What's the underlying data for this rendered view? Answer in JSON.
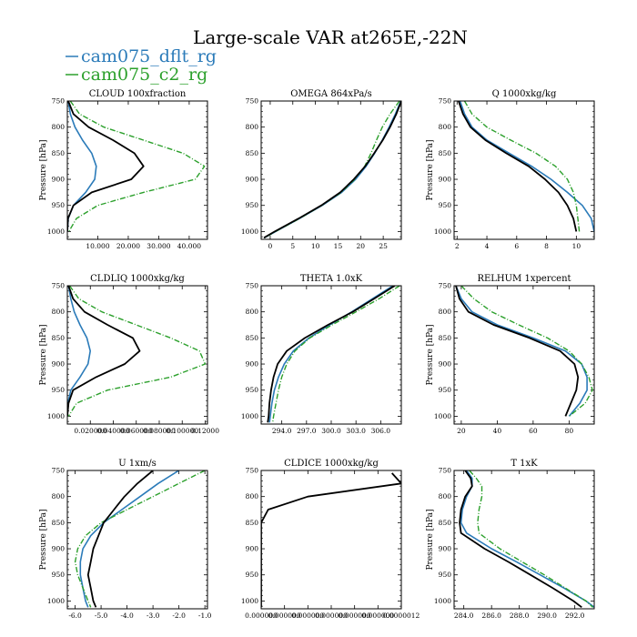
{
  "figure": {
    "title": "Large-scale VAR at265E,-22N",
    "legend": [
      {
        "label": "cam075_dflt_rg",
        "color": "#2b7bb9",
        "dash": "solid"
      },
      {
        "label": "cam075_c2_rg",
        "color": "#2ca02c",
        "dash": "dashdot"
      }
    ],
    "black_series_color": "#000000"
  },
  "chart_data": [
    {
      "type": "line",
      "title": "CLOUD  100xfraction",
      "ylabel": "Pressure [hPa]",
      "xlim": [
        0,
        46
      ],
      "ylim": [
        750,
        1015
      ],
      "xticks": [
        10,
        20,
        30,
        40
      ],
      "xticklabels": [
        "10.000",
        "20.000",
        "30.000",
        "40.000"
      ],
      "yticks": [
        750,
        800,
        850,
        900,
        950,
        1000
      ],
      "pressure": [
        750,
        775,
        800,
        825,
        850,
        875,
        900,
        925,
        950,
        975,
        1000
      ],
      "series": [
        {
          "name": "cam075_dflt_rg",
          "values": [
            0.3,
            1,
            2.5,
            5,
            8,
            9.5,
            9,
            6,
            2,
            0.3,
            0
          ]
        },
        {
          "name": "cam075_c2_rg",
          "values": [
            1,
            4,
            12,
            25,
            38,
            45,
            42,
            25,
            10,
            3,
            0.5
          ]
        },
        {
          "values": [
            0.3,
            2,
            7,
            15,
            22,
            25,
            21,
            8,
            2,
            0.2,
            0
          ]
        }
      ]
    },
    {
      "type": "line",
      "title": "OMEGA  864xPa/s",
      "ylabel": "",
      "xlim": [
        -2,
        29
      ],
      "ylim": [
        750,
        1015
      ],
      "xticks": [
        0,
        5,
        10,
        15,
        20,
        25
      ],
      "xticklabels": [
        "0",
        "5",
        "10",
        "15",
        "20",
        "25"
      ],
      "yticks": [
        750,
        800,
        850,
        900,
        950,
        1000
      ],
      "pressure": [
        750,
        775,
        800,
        825,
        850,
        875,
        900,
        925,
        950,
        975,
        1000,
        1012
      ],
      "series": [
        {
          "name": "cam075_dflt_rg",
          "values": [
            28.9,
            27.7,
            26.3,
            24.8,
            23.1,
            21.2,
            18.9,
            15.8,
            11.5,
            6.5,
            1.2,
            -1.3
          ]
        },
        {
          "name": "cam075_c2_rg",
          "values": [
            28.6,
            26.5,
            24.8,
            23.5,
            22.3,
            20.9,
            18.7,
            15.7,
            11.4,
            6.5,
            1.2,
            -1.3
          ]
        },
        {
          "values": [
            29.0,
            27.9,
            26.5,
            24.9,
            23.0,
            21.0,
            18.5,
            15.5,
            11.3,
            6.3,
            1.0,
            -1.4
          ]
        }
      ]
    },
    {
      "type": "line",
      "title": "Q  1000xkg/kg",
      "ylabel": "Pressure [hPa]",
      "xlim": [
        1.8,
        11.2
      ],
      "ylim": [
        750,
        1015
      ],
      "xticks": [
        2,
        4,
        6,
        8,
        10
      ],
      "xticklabels": [
        "2",
        "4",
        "6",
        "8",
        "10"
      ],
      "yticks": [
        750,
        800,
        850,
        900,
        950,
        1000
      ],
      "pressure": [
        750,
        775,
        800,
        825,
        850,
        875,
        900,
        925,
        950,
        975,
        1000
      ],
      "series": [
        {
          "name": "cam075_dflt_rg",
          "values": [
            2.2,
            2.5,
            3.0,
            4.0,
            5.5,
            7.0,
            8.3,
            9.4,
            10.4,
            11.0,
            11.2
          ]
        },
        {
          "name": "cam075_c2_rg",
          "values": [
            2.5,
            3.0,
            4.0,
            5.6,
            7.3,
            8.6,
            9.4,
            9.8,
            10.0,
            10.1,
            10.2
          ]
        },
        {
          "values": [
            2.1,
            2.4,
            2.9,
            3.9,
            5.3,
            6.8,
            7.9,
            8.8,
            9.4,
            9.8,
            10.0
          ]
        }
      ]
    },
    {
      "type": "line",
      "title": "CLDLIQ  1000xkg/kg",
      "ylabel": "Pressure [hPa]",
      "xlim": [
        0,
        0.122
      ],
      "ylim": [
        750,
        1015
      ],
      "xticks": [
        0.02,
        0.04,
        0.06,
        0.08,
        0.1,
        0.12
      ],
      "xticklabels": [
        "0.020000",
        "0.040000",
        "0.060000",
        "0.080000",
        "0.100000",
        "0.12000"
      ],
      "yticks": [
        750,
        800,
        850,
        900,
        950,
        1000
      ],
      "pressure": [
        750,
        775,
        800,
        825,
        850,
        875,
        900,
        925,
        950,
        975,
        1000
      ],
      "series": [
        {
          "name": "cam075_dflt_rg",
          "values": [
            0.001,
            0.003,
            0.006,
            0.011,
            0.017,
            0.02,
            0.018,
            0.011,
            0.003,
            0.0005,
            0
          ]
        },
        {
          "name": "cam075_c2_rg",
          "values": [
            0.002,
            0.01,
            0.03,
            0.06,
            0.09,
            0.115,
            0.12,
            0.09,
            0.035,
            0.008,
            0.001
          ]
        },
        {
          "values": [
            0.001,
            0.005,
            0.015,
            0.035,
            0.057,
            0.063,
            0.05,
            0.025,
            0.005,
            0.001,
            0
          ]
        }
      ]
    },
    {
      "type": "line",
      "title": "THETA  1.0xK",
      "ylabel": "",
      "xlim": [
        291.5,
        308.5
      ],
      "ylim": [
        750,
        1015
      ],
      "xticks": [
        294,
        297,
        300,
        303,
        306
      ],
      "xticklabels": [
        "294.0",
        "297.0",
        "300.0",
        "303.0",
        "306.0"
      ],
      "yticks": [
        750,
        800,
        850,
        900,
        950,
        1000
      ],
      "pressure": [
        750,
        775,
        800,
        825,
        850,
        875,
        900,
        925,
        950,
        975,
        1000,
        1012
      ],
      "series": [
        {
          "name": "cam075_dflt_rg",
          "values": [
            307.5,
            305.0,
            302.5,
            299.8,
            297.3,
            295.4,
            294.3,
            293.6,
            293.1,
            292.8,
            292.6,
            292.5
          ]
        },
        {
          "name": "cam075_c2_rg",
          "values": [
            308.3,
            305.8,
            303.0,
            300.1,
            297.4,
            295.6,
            294.6,
            294.0,
            293.6,
            293.3,
            293.0,
            292.9
          ]
        },
        {
          "values": [
            307.7,
            305.2,
            302.6,
            299.6,
            296.8,
            294.6,
            293.5,
            293.0,
            292.7,
            292.5,
            292.4,
            292.3
          ]
        }
      ]
    },
    {
      "type": "line",
      "title": "RELHUM  1xpercent",
      "ylabel": "Pressure [hPa]",
      "xlim": [
        16,
        94
      ],
      "ylim": [
        750,
        1015
      ],
      "xticks": [
        20,
        40,
        60,
        80
      ],
      "xticklabels": [
        "20",
        "40",
        "60",
        "80"
      ],
      "yticks": [
        750,
        800,
        850,
        900,
        950,
        1000
      ],
      "pressure": [
        750,
        775,
        800,
        825,
        850,
        875,
        900,
        925,
        950,
        975,
        1000
      ],
      "series": [
        {
          "name": "cam075_dflt_rg",
          "values": [
            17,
            20,
            26,
            40,
            60,
            78,
            87,
            90,
            90,
            86,
            80
          ]
        },
        {
          "name": "cam075_c2_rg",
          "values": [
            20,
            27,
            37,
            52,
            68,
            80,
            87,
            91,
            93,
            89,
            80
          ]
        },
        {
          "values": [
            17,
            19,
            24,
            38,
            58,
            75,
            83,
            85,
            84,
            81,
            78
          ]
        }
      ]
    },
    {
      "type": "line",
      "title": "U  1xm/s",
      "ylabel": "Pressure [hPa]",
      "xlim": [
        -6.3,
        -0.9
      ],
      "ylim": [
        750,
        1015
      ],
      "xticks": [
        -6,
        -5,
        -4,
        -3,
        -2,
        -1
      ],
      "xticklabels": [
        "-6.0",
        "-5.0",
        "-4.0",
        "-3.0",
        "-2.0",
        "-1.0"
      ],
      "yticks": [
        750,
        800,
        850,
        900,
        950,
        1000
      ],
      "pressure": [
        750,
        775,
        800,
        825,
        850,
        875,
        900,
        925,
        950,
        975,
        1000,
        1012
      ],
      "series": [
        {
          "name": "cam075_dflt_rg",
          "values": [
            -2.0,
            -2.8,
            -3.5,
            -4.2,
            -4.9,
            -5.4,
            -5.7,
            -5.8,
            -5.8,
            -5.7,
            -5.6,
            -5.5
          ]
        },
        {
          "name": "cam075_c2_rg",
          "values": [
            -1.0,
            -2.0,
            -3.0,
            -4.0,
            -5.0,
            -5.6,
            -5.9,
            -6.0,
            -5.9,
            -5.7,
            -5.5,
            -5.4
          ]
        },
        {
          "values": [
            -3.0,
            -3.6,
            -4.1,
            -4.5,
            -4.9,
            -5.1,
            -5.3,
            -5.4,
            -5.5,
            -5.4,
            -5.3,
            -5.2
          ]
        }
      ]
    },
    {
      "type": "line",
      "title": "CLDICE  1000xkg/kg",
      "ylabel": "",
      "xlim": [
        0,
        1.2e-06
      ],
      "ylim": [
        750,
        1015
      ],
      "xticks": [
        0,
        2e-07,
        4e-07,
        6e-07,
        8e-07,
        1e-06,
        1.2e-06
      ],
      "xticklabels": [
        "0.000000",
        "0.000000",
        "0.000000",
        "0.000000",
        "0.000000",
        "0.000000",
        "0.0000012"
      ],
      "yticks": [
        750,
        800,
        850,
        900,
        950,
        1000
      ],
      "pressure": [
        755,
        775,
        800,
        825,
        850,
        875,
        900,
        925,
        950,
        975,
        1000,
        1012
      ],
      "series": [
        {
          "values": [
            1.12e-06,
            1.2e-06,
            4e-07,
            6e-08,
            0,
            0,
            0,
            0,
            0,
            0,
            0,
            0
          ]
        }
      ]
    },
    {
      "type": "line",
      "title": "T  1xK",
      "ylabel": "Pressure [hPa]",
      "xlim": [
        283.3,
        293.4
      ],
      "ylim": [
        750,
        1015
      ],
      "xticks": [
        284,
        286,
        288,
        290,
        292
      ],
      "xticklabels": [
        "284.0",
        "286.0",
        "288.0",
        "290.0",
        "292.0"
      ],
      "yticks": [
        750,
        800,
        850,
        900,
        950,
        1000
      ],
      "pressure": [
        750,
        765,
        780,
        800,
        825,
        850,
        870,
        900,
        925,
        950,
        975,
        1000,
        1012
      ],
      "series": [
        {
          "name": "cam075_dflt_rg",
          "values": [
            284.2,
            284.6,
            284.6,
            284.2,
            283.9,
            283.8,
            284.2,
            286.0,
            287.8,
            289.5,
            291.2,
            292.8,
            293.4
          ]
        },
        {
          "name": "cam075_c2_rg",
          "values": [
            284.4,
            284.9,
            285.3,
            285.3,
            285.1,
            285.0,
            285.1,
            286.6,
            288.2,
            289.8,
            291.3,
            292.8,
            293.3
          ]
        },
        {
          "values": [
            284.1,
            284.5,
            284.6,
            284.1,
            283.8,
            283.7,
            283.8,
            285.5,
            287.2,
            288.8,
            290.4,
            291.9,
            292.5
          ]
        }
      ]
    }
  ]
}
